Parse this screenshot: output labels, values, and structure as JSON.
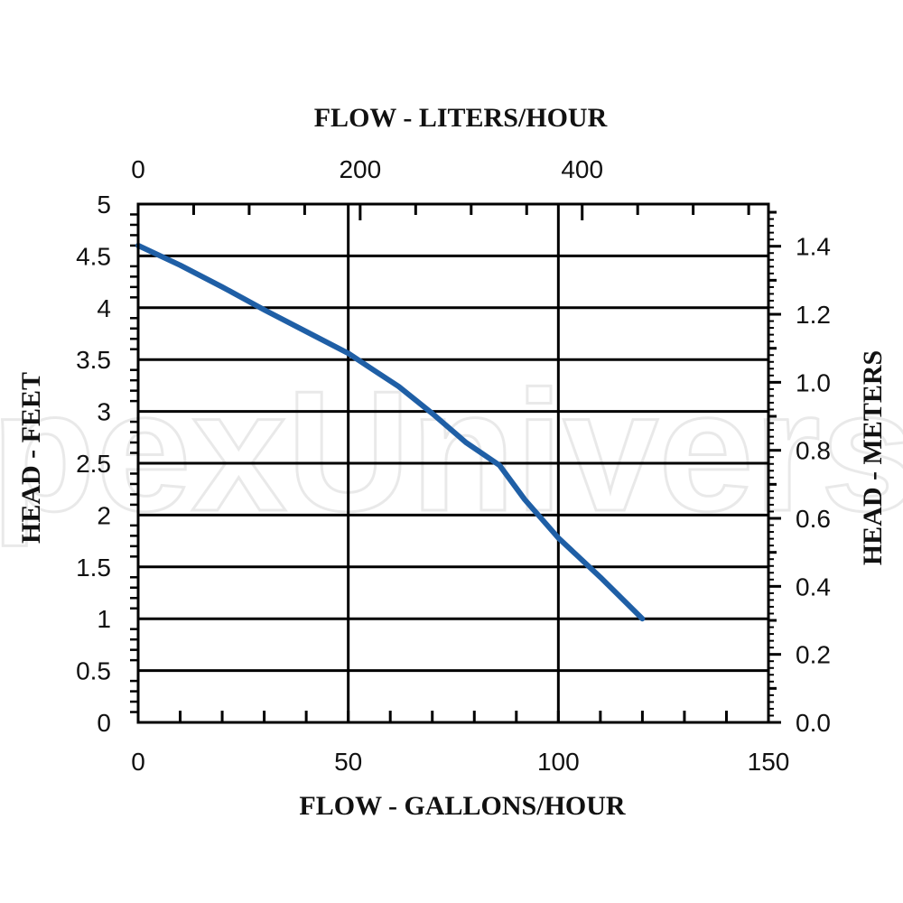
{
  "watermark": "pexUniverse",
  "chart_data": {
    "type": "line",
    "title": "",
    "x_top_label": "FLOW - LITERS/HOUR",
    "x_bottom_label": "FLOW - GALLONS/HOUR",
    "y_left_label": "HEAD - FEET",
    "y_right_label": "HEAD - METERS",
    "xlim": [
      0,
      150
    ],
    "ylim": [
      0,
      5
    ],
    "x_ticks": [
      "0",
      "50",
      "100",
      "150"
    ],
    "y_left_ticks": [
      "0",
      "0.5",
      "1",
      "1.5",
      "2",
      "2.5",
      "3",
      "3.5",
      "4",
      "4.5",
      "5"
    ],
    "y_right_ticks": [
      "0.0",
      "0.2",
      "0.4",
      "0.6",
      "0.8",
      "1.0",
      "1.2",
      "1.4"
    ],
    "x_top_ticks": [
      "0",
      "200",
      "400"
    ],
    "grid": true,
    "line_color": "#1f5fa6",
    "series": [
      {
        "x": [
          0,
          10,
          20,
          30,
          40,
          50,
          56,
          62,
          70,
          78,
          86,
          92,
          100,
          110,
          120
        ],
        "y": [
          4.6,
          4.41,
          4.2,
          3.98,
          3.77,
          3.56,
          3.4,
          3.24,
          2.98,
          2.7,
          2.48,
          2.15,
          1.78,
          1.4,
          1.0
        ]
      }
    ]
  }
}
